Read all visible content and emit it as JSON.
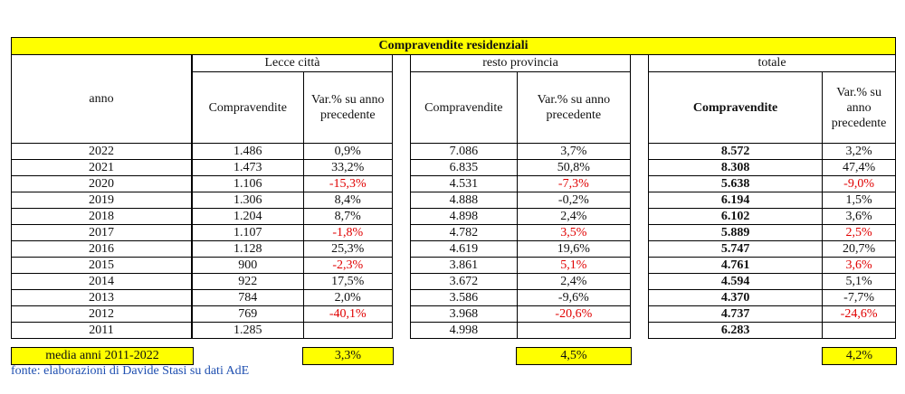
{
  "title": "Compravendite residenziali",
  "header": {
    "anno": "anno",
    "lecce": "Lecce città",
    "resto": "resto provincia",
    "totale": "totale",
    "compravendite": "Compravendite",
    "var": "Var.% su anno precedente",
    "var_l1": "Var.% su",
    "var_l2": "anno",
    "var_l3": "precedente"
  },
  "rows": [
    {
      "anno": "2022",
      "lc": "1.486",
      "lv": "0,9%",
      "rc": "7.086",
      "rv": "3,7%",
      "tc": "8.572",
      "tv": "3,2%"
    },
    {
      "anno": "2021",
      "lc": "1.473",
      "lv": "33,2%",
      "rc": "6.835",
      "rv": "50,8%",
      "tc": "8.308",
      "tv": "47,4%"
    },
    {
      "anno": "2020",
      "lc": "1.106",
      "lv": "-15,3%",
      "rc": "4.531",
      "rv": "-7,3%",
      "tc": "5.638",
      "tv": "-9,0%"
    },
    {
      "anno": "2019",
      "lc": "1.306",
      "lv": "8,4%",
      "rc": "4.888",
      "rv": "-0,2%",
      "tc": "6.194",
      "tv": "1,5%"
    },
    {
      "anno": "2018",
      "lc": "1.204",
      "lv": "8,7%",
      "rc": "4.898",
      "rv": "2,4%",
      "tc": "6.102",
      "tv": "3,6%"
    },
    {
      "anno": "2017",
      "lc": "1.107",
      "lv": "-1,8%",
      "rc": "4.782",
      "rv": "3,5%",
      "tc": "5.889",
      "tv": "2,5%"
    },
    {
      "anno": "2016",
      "lc": "1.128",
      "lv": "25,3%",
      "rc": "4.619",
      "rv": "19,6%",
      "tc": "5.747",
      "tv": "20,7%"
    },
    {
      "anno": "2015",
      "lc": "900",
      "lv": "-2,3%",
      "rc": "3.861",
      "rv": "5,1%",
      "tc": "4.761",
      "tv": "3,6%"
    },
    {
      "anno": "2014",
      "lc": "922",
      "lv": "17,5%",
      "rc": "3.672",
      "rv": "2,4%",
      "tc": "4.594",
      "tv": "5,1%"
    },
    {
      "anno": "2013",
      "lc": "784",
      "lv": "2,0%",
      "rc": "3.586",
      "rv": "-9,6%",
      "tc": "4.370",
      "tv": "-7,7%"
    },
    {
      "anno": "2012",
      "lc": "769",
      "lv": "-40,1%",
      "rc": "3.968",
      "rv": "-20,6%",
      "tc": "4.737",
      "tv": "-24,6%"
    },
    {
      "anno": "2011",
      "lc": "1.285",
      "lv": "",
      "rc": "4.998",
      "rv": "",
      "tc": "6.283",
      "tv": ""
    }
  ],
  "red_cells": {
    "lv": [
      "2020",
      "2017",
      "2015",
      "2012"
    ],
    "rv": [
      "2020",
      "2017",
      "2015",
      "2012"
    ],
    "tv": [
      "2020",
      "2017",
      "2015",
      "2012"
    ]
  },
  "media": {
    "label": "media anni 2011-2022",
    "lecce": "3,3%",
    "resto": "4,5%",
    "totale": "4,2%"
  },
  "fonte": "fonte: elaborazioni di Davide Stasi su dati AdE",
  "colors": {
    "highlight": "#ffff00",
    "negative": "#e00000",
    "source_text": "#1f4fb0"
  }
}
